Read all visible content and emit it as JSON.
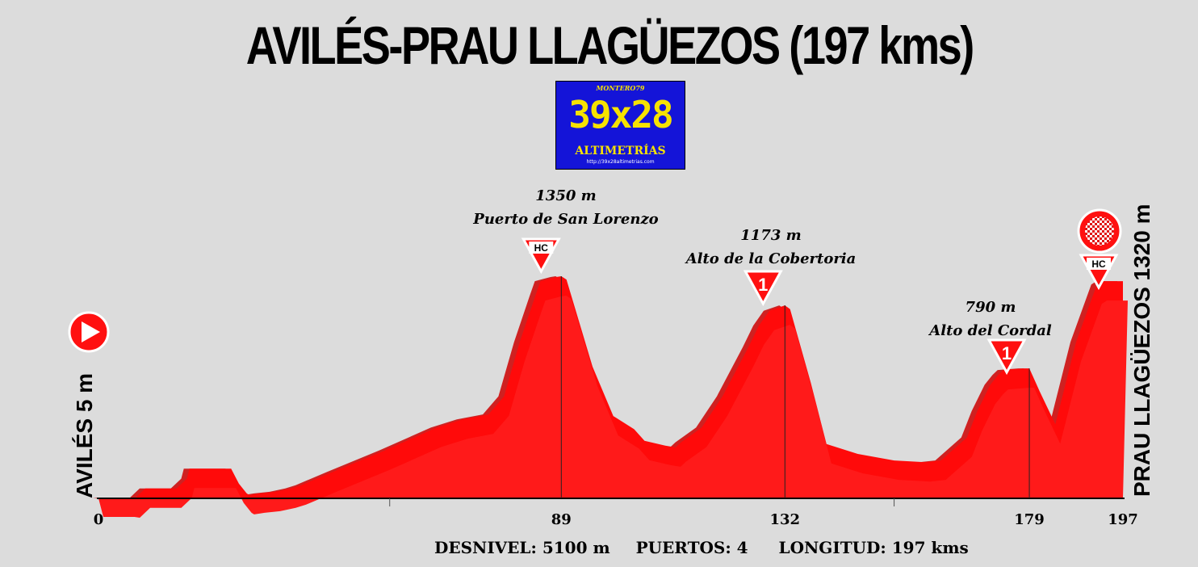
{
  "title": "AVILÉS-PRAU LLAGÜEZOS (197 kms)",
  "logo": {
    "top": "MONTERO79",
    "main": "39x28",
    "sub": "ALTIMETRÍAS",
    "url": "http://39x28altimetrias.com"
  },
  "footer": {
    "desnivel": "DESNIVEL: 5100 m",
    "puertos": "PUERTOS:  4",
    "longitud": "LONGITUD:  197 kms"
  },
  "colors": {
    "profile_fill": "#ff0a0a",
    "profile_shadow": "#cc0000",
    "background": "#dcdcdc"
  },
  "chart_data": {
    "type": "area",
    "x_ticks": [
      "0",
      "89",
      "132",
      "179",
      "197"
    ],
    "tick_values": [
      0,
      89,
      132,
      179,
      197
    ],
    "start_label": "AVILÉS 5 m",
    "finish_label": "PRAU LLAGÜEZOS 1320 m",
    "xlim": [
      0,
      197
    ],
    "ylim": [
      0,
      1400
    ],
    "profile": {
      "x": [
        0,
        6,
        7,
        9,
        15,
        17,
        17.5,
        25.5,
        27,
        28.5,
        29,
        31,
        34,
        37,
        39,
        45,
        55,
        65,
        70,
        75,
        78,
        81,
        84,
        85,
        88,
        89,
        90,
        95,
        99,
        103,
        105,
        109,
        111,
        112,
        116,
        120,
        125,
        127,
        129,
        132,
        133,
        137,
        140,
        146,
        153,
        159,
        162,
        167,
        169,
        171.5,
        173,
        174,
        178,
        179,
        181,
        184,
        188,
        192,
        193,
        197
      ],
      "y": [
        5,
        5,
        0,
        60,
        60,
        120,
        180,
        180,
        90,
        30,
        20,
        30,
        40,
        60,
        80,
        160,
        290,
        430,
        480,
        510,
        620,
        950,
        1230,
        1320,
        1345,
        1350,
        1330,
        800,
        500,
        420,
        350,
        320,
        310,
        340,
        430,
        620,
        920,
        1050,
        1140,
        1173,
        1150,
        700,
        330,
        270,
        230,
        220,
        230,
        370,
        530,
        690,
        750,
        780,
        790,
        790,
        650,
        450,
        950,
        1300,
        1320,
        1320
      ]
    },
    "summits": [
      {
        "name": "Puerto de San Lorenzo",
        "elevation": "1350 m",
        "category": "HC",
        "x": 89,
        "y": 1350
      },
      {
        "name": "Alto de la Cobertoria",
        "elevation": "1173 m",
        "category": "1",
        "x": 132,
        "y": 1173
      },
      {
        "name": "Alto del Cordal",
        "elevation": "790 m",
        "category": "1",
        "x": 179,
        "y": 790
      },
      {
        "name": "",
        "elevation": "",
        "category": "HC",
        "x": 197,
        "y": 1320
      }
    ]
  }
}
